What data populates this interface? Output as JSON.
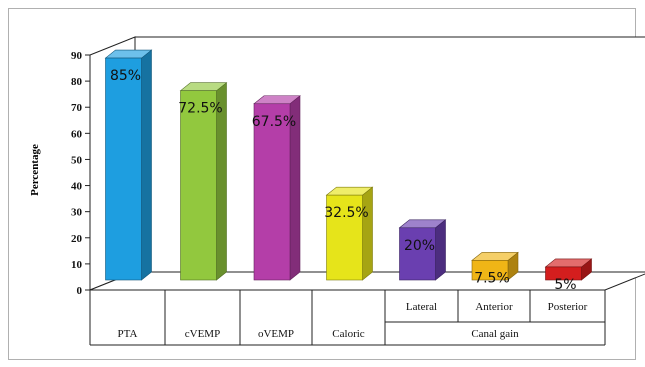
{
  "chart_data": {
    "type": "bar",
    "title": "",
    "xlabel": "",
    "ylabel": "Percentage",
    "ylim": [
      0,
      90
    ],
    "yticks": [
      "0",
      "10",
      "20",
      "30",
      "40",
      "50",
      "60",
      "70",
      "80",
      "90"
    ],
    "categories": [
      "PTA",
      "cVEMP",
      "oVEMP",
      "Caloric",
      "Lateral",
      "Anterior",
      "Posterior"
    ],
    "group_label": "Canal gain",
    "values": [
      85,
      72.5,
      67.5,
      32.5,
      20,
      7.5,
      5
    ],
    "data_labels": [
      "85%",
      "72.5%",
      "67.5%",
      "32.5%",
      "20%",
      "7.5%",
      "5%"
    ],
    "colors": [
      "#1e9ee0",
      "#92c83e",
      "#b43ea8",
      "#e6e41a",
      "#6a3fb0",
      "#f0b516",
      "#d41e1e"
    ],
    "grid": false,
    "legend": "none"
  }
}
